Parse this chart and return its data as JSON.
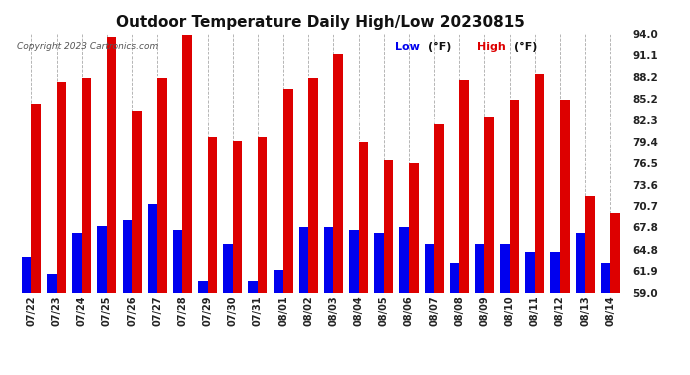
{
  "title": "Outdoor Temperature Daily High/Low 20230815",
  "copyright": "Copyright 2023 Cartronics.com",
  "legend_low_label": "Low",
  "legend_high_label": "High",
  "legend_unit": "(°F)",
  "yticks": [
    59.0,
    61.9,
    64.8,
    67.8,
    70.7,
    73.6,
    76.5,
    79.4,
    82.3,
    85.2,
    88.2,
    91.1,
    94.0
  ],
  "ylim": [
    59.0,
    94.0
  ],
  "background_color": "#ffffff",
  "low_color": "#0000ee",
  "high_color": "#dd0000",
  "title_fontsize": 11,
  "dates": [
    "07/22",
    "07/23",
    "07/24",
    "07/25",
    "07/26",
    "07/27",
    "07/28",
    "07/29",
    "07/30",
    "07/31",
    "08/01",
    "08/02",
    "08/03",
    "08/04",
    "08/05",
    "08/06",
    "08/07",
    "08/08",
    "08/09",
    "08/10",
    "08/11",
    "08/12",
    "08/13",
    "08/14"
  ],
  "highs": [
    84.5,
    87.5,
    88.0,
    93.5,
    83.5,
    88.0,
    93.8,
    80.0,
    79.5,
    80.0,
    86.5,
    88.0,
    91.3,
    79.4,
    76.9,
    76.5,
    81.8,
    87.8,
    82.8,
    85.0,
    88.5,
    85.0,
    72.0,
    69.8
  ],
  "lows": [
    63.8,
    61.5,
    67.0,
    68.0,
    68.8,
    71.0,
    67.5,
    60.5,
    65.5,
    60.5,
    62.0,
    67.8,
    67.8,
    67.5,
    67.0,
    67.8,
    65.5,
    63.0,
    65.5,
    65.5,
    64.5,
    64.5,
    67.0,
    63.0
  ],
  "ymin": 59.0
}
